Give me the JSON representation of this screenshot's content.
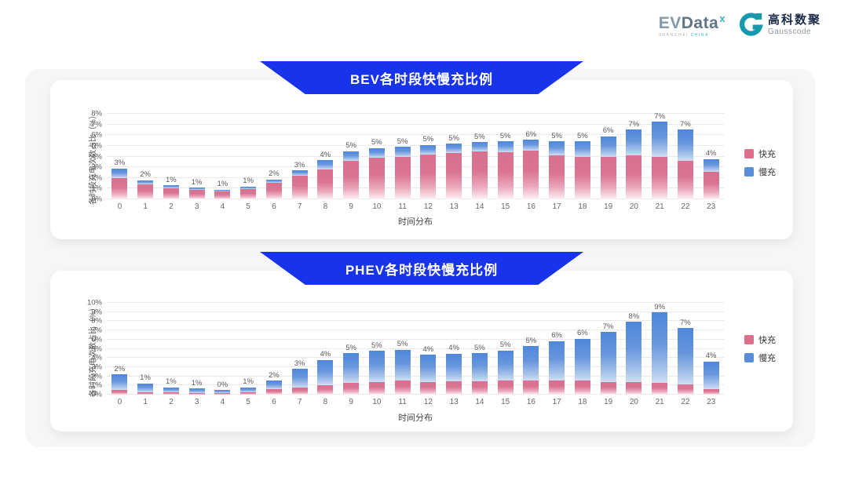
{
  "colors": {
    "banner_blue": "#1834eb",
    "fast_pink": "#d8708f",
    "slow_blue": "#4e87da",
    "panel_bg": "#ffffff",
    "container_bg": "#f7f6f7",
    "logo_teal": "#35b4c9",
    "gauss_navy": "#1c2b4a"
  },
  "header": {
    "evdata": {
      "ev": "EV",
      "data": "Data",
      "sup": "x",
      "sub_left": "SHANGHAI",
      "sub_right": "CHINA"
    },
    "gausscode": {
      "cn": "高科数聚",
      "en": "Gausscode"
    }
  },
  "chart_data": [
    {
      "type": "bar",
      "stacked": true,
      "title": "BEV各时段快慢充比例",
      "xlabel": "时间分布",
      "ylabel": "各时段充电次数占比（%）",
      "ylim": [
        0,
        8
      ],
      "ytick_step": 1,
      "grid": true,
      "legend_position": "right",
      "categories": [
        0,
        1,
        2,
        3,
        4,
        5,
        6,
        7,
        8,
        9,
        10,
        11,
        12,
        13,
        14,
        15,
        16,
        17,
        18,
        19,
        20,
        21,
        22,
        23
      ],
      "series": [
        {
          "name": "快充",
          "color": "#dd6e8c",
          "values": [
            2.0,
            1.4,
            1.05,
            0.9,
            0.75,
            0.95,
            1.55,
            2.2,
            2.8,
            3.6,
            3.9,
            4.0,
            4.2,
            4.3,
            4.5,
            4.4,
            4.55,
            4.1,
            4.0,
            4.0,
            4.1,
            3.95,
            3.6,
            2.55
          ]
        },
        {
          "name": "慢充",
          "color": "#5b8ed8",
          "values": [
            0.9,
            0.4,
            0.25,
            0.2,
            0.15,
            0.25,
            0.3,
            0.5,
            0.85,
            0.9,
            0.9,
            0.9,
            0.9,
            0.9,
            0.85,
            1.0,
            1.0,
            1.3,
            1.4,
            1.9,
            2.4,
            3.3,
            2.9,
            1.2
          ]
        }
      ],
      "bar_labels": [
        "3%",
        "2%",
        "1%",
        "1%",
        "1%",
        "1%",
        "2%",
        "3%",
        "4%",
        "5%",
        "5%",
        "5%",
        "5%",
        "5%",
        "5%",
        "5%",
        "6%",
        "5%",
        "5%",
        "6%",
        "7%",
        "7%",
        "7%",
        "4%"
      ]
    },
    {
      "type": "bar",
      "stacked": true,
      "title": "PHEV各时段快慢充比例",
      "xlabel": "时间分布",
      "ylabel": "各时段充电次数占比（%）",
      "ylim": [
        0,
        10
      ],
      "ytick_step": 1,
      "grid": true,
      "legend_position": "right",
      "categories": [
        0,
        1,
        2,
        3,
        4,
        5,
        6,
        7,
        8,
        9,
        10,
        11,
        12,
        13,
        14,
        15,
        16,
        17,
        18,
        19,
        20,
        21,
        22,
        23
      ],
      "series": [
        {
          "name": "快充",
          "color": "#dd6e8c",
          "values": [
            0.5,
            0.3,
            0.25,
            0.2,
            0.2,
            0.25,
            0.6,
            0.8,
            1.0,
            1.3,
            1.4,
            1.5,
            1.4,
            1.45,
            1.45,
            1.55,
            1.5,
            1.5,
            1.5,
            1.4,
            1.35,
            1.25,
            1.1,
            0.6
          ]
        },
        {
          "name": "慢充",
          "color": "#5b8ed8",
          "values": [
            1.7,
            0.9,
            0.55,
            0.45,
            0.3,
            0.55,
            0.9,
            2.0,
            2.8,
            3.2,
            3.35,
            3.4,
            2.95,
            3.0,
            3.05,
            3.25,
            3.8,
            4.35,
            4.6,
            5.4,
            6.6,
            7.7,
            6.15,
            3.0
          ]
        }
      ],
      "bar_labels": [
        "2%",
        "1%",
        "1%",
        "1%",
        "0%",
        "1%",
        "2%",
        "3%",
        "4%",
        "5%",
        "5%",
        "5%",
        "4%",
        "4%",
        "5%",
        "5%",
        "5%",
        "6%",
        "6%",
        "7%",
        "8%",
        "9%",
        "7%",
        "4%"
      ]
    }
  ]
}
